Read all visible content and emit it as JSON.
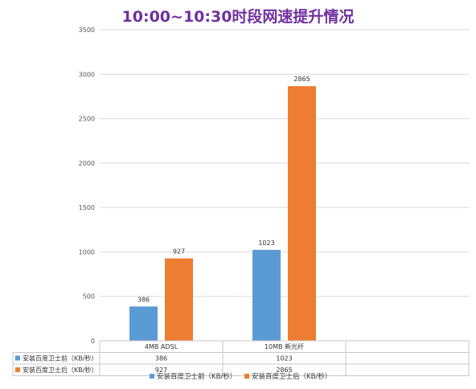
{
  "chart_data": {
    "type": "bar",
    "title": "10:00~10:30时段网速提升情况",
    "categories": [
      "4MB ADSL",
      "10MB 新光纤"
    ],
    "series": [
      {
        "name": "安装百度卫士前（KB/秒）",
        "values": [
          386,
          1023
        ],
        "color": "#5b9bd5"
      },
      {
        "name": "安装百度卫士后（KB/秒）",
        "values": [
          927,
          2865
        ],
        "color": "#ed7d31"
      }
    ],
    "y_ticks": [
      "0",
      "500",
      "1000",
      "1500",
      "2000",
      "2500",
      "3000",
      "3500"
    ],
    "ylim": [
      0,
      3500
    ],
    "grid": true,
    "data_table": true,
    "legend_position": "bottom"
  }
}
